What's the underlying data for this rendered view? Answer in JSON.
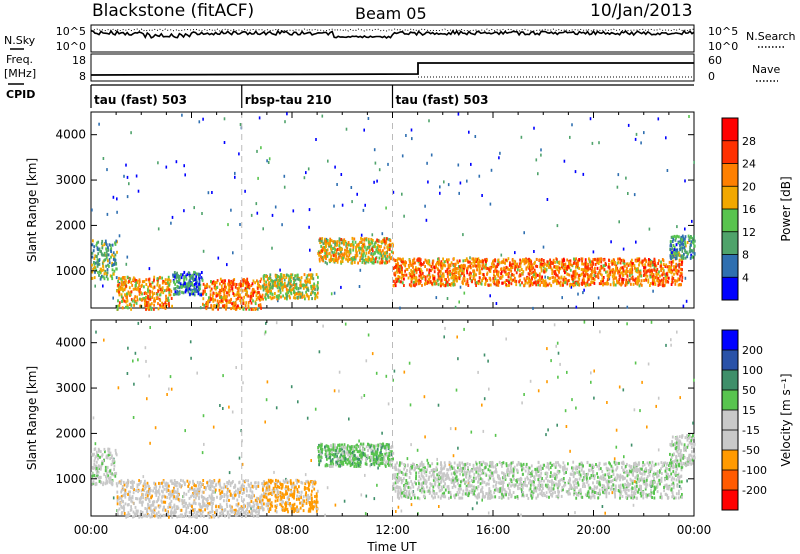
{
  "header": {
    "station": "Blackstone (fitACF)",
    "beam": "Beam 05",
    "date": "10/Jan/2013"
  },
  "side_labels": {
    "nsky": "N.Sky",
    "freq": "Freq.",
    "freq_unit": "[MHz]",
    "cpid": "CPID",
    "nsearch": "N.Search",
    "nave": "Nave"
  },
  "noise_ticks": {
    "top": "10^5",
    "bottom": "10^0"
  },
  "freq_ticks": {
    "top": "18",
    "bottom": "8"
  },
  "nave_ticks": {
    "top": "60",
    "bottom": "0"
  },
  "cpid_segments": [
    {
      "label": "tau (fast) 503",
      "start": 0,
      "end": 6
    },
    {
      "label": "rbsp-tau 210",
      "start": 6,
      "end": 12
    },
    {
      "label": "tau (fast) 503",
      "start": 12,
      "end": 24
    }
  ],
  "xlabel": "Time UT",
  "x_ticks": [
    "00:00",
    "04:00",
    "08:00",
    "12:00",
    "16:00",
    "20:00",
    "00:00"
  ],
  "colors": {
    "power": [
      "#0000ff",
      "#2f6fb0",
      "#4fa36b",
      "#58c44e",
      "#f2a800",
      "#ff8000",
      "#ff3000",
      "#ff0000"
    ],
    "velocity": [
      "#ff0000",
      "#ff5a00",
      "#ff9a00",
      "#c8c8c8",
      "#c8c8c8",
      "#58c44e",
      "#3f8f6a",
      "#2a52a8",
      "#0000ff"
    ]
  },
  "chart_data": [
    {
      "type": "heatmap",
      "name": "Power",
      "xlim": [
        0,
        24
      ],
      "ylim": [
        180,
        4500
      ],
      "ylabel": "Slant Range [km]",
      "yticks": [
        1000,
        2000,
        3000,
        4000
      ],
      "colorbar_label": "Power [dB]",
      "colorbar_ticks": [
        "4",
        "8",
        "12",
        "16",
        "20",
        "24",
        "28"
      ],
      "colorbar_range": [
        0,
        32
      ],
      "regions": [
        {
          "t": [
            0.0,
            1.0
          ],
          "r": [
            850,
            1700
          ],
          "v": 12
        },
        {
          "t": [
            1.0,
            3.2
          ],
          "r": [
            180,
            900
          ],
          "v": 20
        },
        {
          "t": [
            3.2,
            4.4
          ],
          "r": [
            500,
            1000
          ],
          "v": 8
        },
        {
          "t": [
            4.4,
            6.8
          ],
          "r": [
            180,
            850
          ],
          "v": 22
        },
        {
          "t": [
            6.8,
            9.0
          ],
          "r": [
            400,
            950
          ],
          "v": 16
        },
        {
          "t": [
            9.0,
            12.0
          ],
          "r": [
            1200,
            1750
          ],
          "v": 18
        },
        {
          "t": [
            12.0,
            23.5
          ],
          "r": [
            700,
            1300
          ],
          "v": 22
        },
        {
          "t": [
            23.0,
            24.0
          ],
          "r": [
            1300,
            1800
          ],
          "v": 10
        }
      ]
    },
    {
      "type": "heatmap",
      "name": "Velocity",
      "xlim": [
        0,
        24
      ],
      "ylim": [
        180,
        4500
      ],
      "ylabel": "Slant Range [km]",
      "yticks": [
        1000,
        2000,
        3000,
        4000
      ],
      "colorbar_label": "Velocity [m s^-1]",
      "colorbar_ticks": [
        "-200",
        "-100",
        "-50",
        "-15",
        "15",
        "50",
        "100",
        "200"
      ],
      "colorbar_range": [
        -250,
        250
      ],
      "regions": [
        {
          "t": [
            0.0,
            1.0
          ],
          "r": [
            900,
            1700
          ],
          "v": 0
        },
        {
          "t": [
            1.0,
            6.8
          ],
          "r": [
            180,
            1000
          ],
          "v": -30
        },
        {
          "t": [
            6.8,
            9.0
          ],
          "r": [
            300,
            1000
          ],
          "v": -60
        },
        {
          "t": [
            9.0,
            12.0
          ],
          "r": [
            1300,
            1800
          ],
          "v": 30
        },
        {
          "t": [
            12.0,
            23.5
          ],
          "r": [
            600,
            1400
          ],
          "v": 0
        },
        {
          "t": [
            23.0,
            24.0
          ],
          "r": [
            1300,
            2000
          ],
          "v": 0
        }
      ]
    }
  ]
}
